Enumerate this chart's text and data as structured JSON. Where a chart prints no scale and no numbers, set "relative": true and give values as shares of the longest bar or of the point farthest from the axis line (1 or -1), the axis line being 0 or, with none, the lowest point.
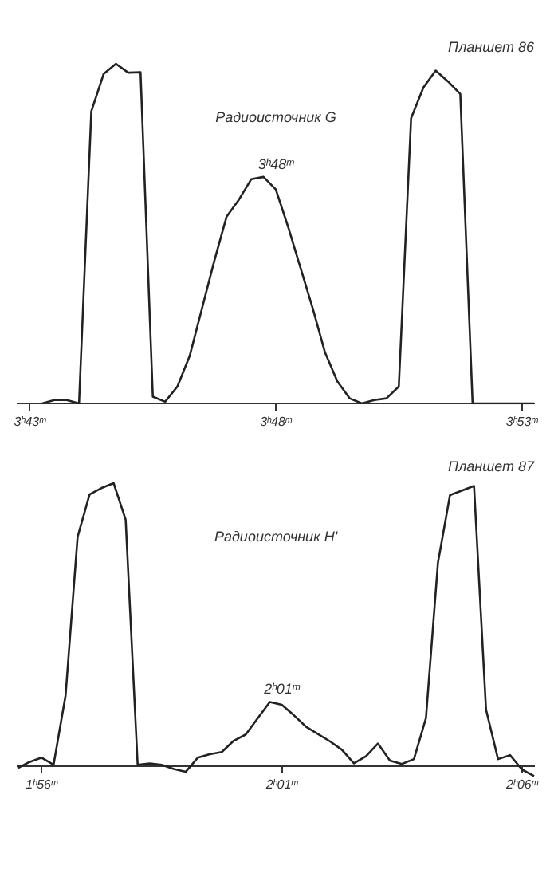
{
  "chart_data": [
    {
      "type": "line",
      "title": "Радиоисточник G",
      "annotations": [
        "Планшет 86",
        {
          "text": "3ʰ48ᵐ",
          "x": "3ʰ48ᵐ",
          "y": 0.667
        }
      ],
      "relative": true,
      "color": "#222222",
      "marker": "none",
      "line_style": "solid",
      "grid": false,
      "legend": false,
      "categories": [
        null,
        "3ʰ43ᵐ",
        null,
        null,
        null,
        null,
        null,
        null,
        null,
        null,
        null,
        null,
        null,
        null,
        null,
        null,
        null,
        null,
        null,
        null,
        null,
        "3ʰ48ᵐ",
        null,
        null,
        null,
        null,
        null,
        null,
        null,
        null,
        null,
        null,
        null,
        null,
        null,
        null,
        null,
        null,
        null,
        null,
        null,
        "3ʰ53ᵐ",
        null
      ],
      "values": [
        null,
        null,
        0,
        0.01,
        0.01,
        0,
        0.86,
        0.97,
        1,
        0.974,
        0.975,
        0.02,
        0.005,
        0.05,
        0.14,
        0.28,
        0.42,
        0.55,
        0.6,
        0.66,
        0.667,
        0.63,
        0.52,
        0.4,
        0.28,
        0.15,
        0.065,
        0.015,
        0,
        0.01,
        0.015,
        0.05,
        0.84,
        0.93,
        0.98,
        0.948,
        0.911,
        0,
        0,
        0,
        0,
        0,
        0
      ]
    },
    {
      "type": "line",
      "title": "Радиоисточник H'",
      "annotations": [
        "Планшет 87",
        {
          "text": "2ʰ01ᵐ",
          "x": "2ʰ01ᵐ",
          "y": 0.227
        }
      ],
      "relative": true,
      "color": "#222222",
      "marker": "none",
      "line_style": "solid",
      "grid": false,
      "legend": false,
      "categories": [
        null,
        null,
        "1ʰ56ᵐ",
        null,
        null,
        null,
        null,
        null,
        null,
        null,
        null,
        null,
        null,
        null,
        null,
        null,
        null,
        null,
        null,
        null,
        null,
        null,
        "2ʰ01ᵐ",
        null,
        null,
        null,
        null,
        null,
        null,
        null,
        null,
        null,
        null,
        null,
        null,
        null,
        null,
        null,
        null,
        null,
        null,
        null,
        "2ʰ06ᵐ",
        null
      ],
      "values": [
        -0.007,
        0.015,
        0.03,
        0.005,
        0.25,
        0.81,
        0.96,
        0.983,
        1,
        0.871,
        0.005,
        0.01,
        0.005,
        -0.01,
        -0.02,
        0.03,
        0.042,
        0.05,
        0.09,
        0.112,
        0.17,
        0.227,
        0.217,
        0.18,
        0.14,
        0.114,
        0.088,
        0.058,
        0.01,
        0.035,
        0.08,
        0.02,
        0.008,
        0.025,
        0.17,
        0.72,
        0.958,
        0.974,
        0.99,
        0.2,
        0.025,
        0.039,
        -0.012,
        -0.035
      ]
    }
  ]
}
